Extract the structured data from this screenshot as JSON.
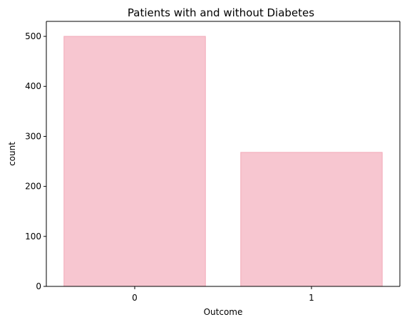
{
  "chart_data": {
    "type": "bar",
    "title": "Patients with and without Diabetes",
    "xlabel": "Outcome",
    "ylabel": "count",
    "categories": [
      "0",
      "1"
    ],
    "values": [
      500,
      268
    ],
    "ylim": [
      0,
      530
    ],
    "yticks": [
      0,
      100,
      200,
      300,
      400,
      500
    ],
    "grid": false,
    "legend": "none",
    "colors": {
      "bar_fill": "#f7c6d0",
      "bar_edge": "#f2a9b8",
      "axis": "#000000"
    }
  }
}
